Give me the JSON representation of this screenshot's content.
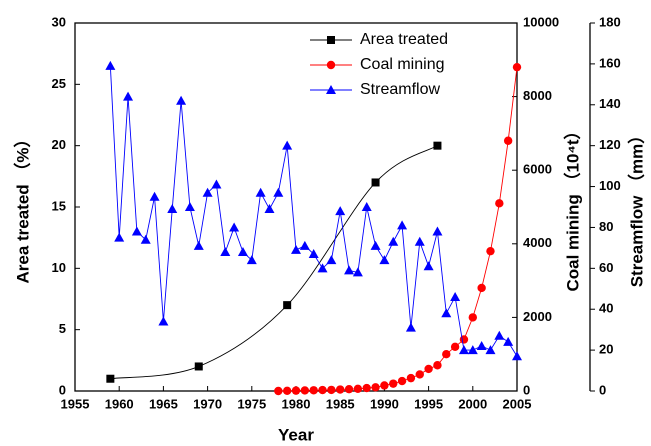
{
  "chart_data": {
    "type": "line",
    "xlabel": "Year",
    "ylabel": "Area treated （%）",
    "y2label": "Coal mining （10⁴t）",
    "y3label": "Streamflow （mm）",
    "xlim": [
      1955,
      2005
    ],
    "xticks": [
      1955,
      1960,
      1965,
      1970,
      1975,
      1980,
      1985,
      1990,
      1995,
      2000,
      2005
    ],
    "ylim": [
      0,
      30
    ],
    "yticks": [
      0,
      5,
      10,
      15,
      20,
      25,
      30
    ],
    "y2lim": [
      0,
      10000
    ],
    "y2ticks": [
      0,
      2000,
      4000,
      6000,
      8000,
      10000
    ],
    "y3lim": [
      0,
      180
    ],
    "y3ticks": [
      0,
      20,
      40,
      60,
      80,
      100,
      120,
      140,
      160,
      180
    ],
    "legend": "upper center",
    "series": [
      {
        "name": "Area treated",
        "color": "#000000",
        "marker": "square",
        "axis": "y",
        "smooth": true,
        "x": [
          1959,
          1969,
          1979,
          1989,
          1996
        ],
        "values": [
          1,
          2,
          7,
          17,
          20
        ]
      },
      {
        "name": "Coal mining",
        "color": "#ff0000",
        "marker": "circle",
        "axis": "y2",
        "x": [
          1978,
          1979,
          1980,
          1981,
          1982,
          1983,
          1984,
          1985,
          1986,
          1987,
          1988,
          1989,
          1990,
          1991,
          1992,
          1993,
          1994,
          1995,
          1996,
          1997,
          1998,
          1999,
          2000,
          2001,
          2002,
          2003,
          2004,
          2005
        ],
        "values": [
          0,
          5,
          10,
          15,
          20,
          25,
          30,
          40,
          50,
          60,
          80,
          100,
          150,
          200,
          270,
          350,
          450,
          600,
          700,
          1000,
          1200,
          1400,
          2000,
          2800,
          3800,
          5100,
          6800,
          8800
        ]
      },
      {
        "name": "Streamflow",
        "color": "#0000ff",
        "marker": "triangle",
        "axis": "y3",
        "x": [
          1959,
          1960,
          1961,
          1962,
          1963,
          1964,
          1965,
          1966,
          1967,
          1968,
          1969,
          1970,
          1971,
          1972,
          1973,
          1974,
          1975,
          1976,
          1977,
          1978,
          1979,
          1980,
          1981,
          1982,
          1983,
          1984,
          1985,
          1986,
          1987,
          1988,
          1989,
          1990,
          1991,
          1992,
          1993,
          1994,
          1995,
          1996,
          1997,
          1998,
          1999,
          2000,
          2001,
          2002,
          2003,
          2004,
          2005
        ],
        "values": [
          159,
          75,
          144,
          78,
          74,
          95,
          34,
          89,
          142,
          90,
          71,
          97,
          101,
          68,
          80,
          68,
          64,
          97,
          89,
          97,
          120,
          69,
          71,
          67,
          60,
          64,
          88,
          59,
          58,
          90,
          71,
          64,
          73,
          81,
          31,
          73,
          61,
          78,
          38,
          46,
          20,
          20,
          22,
          20,
          27,
          24,
          17
        ]
      }
    ]
  }
}
